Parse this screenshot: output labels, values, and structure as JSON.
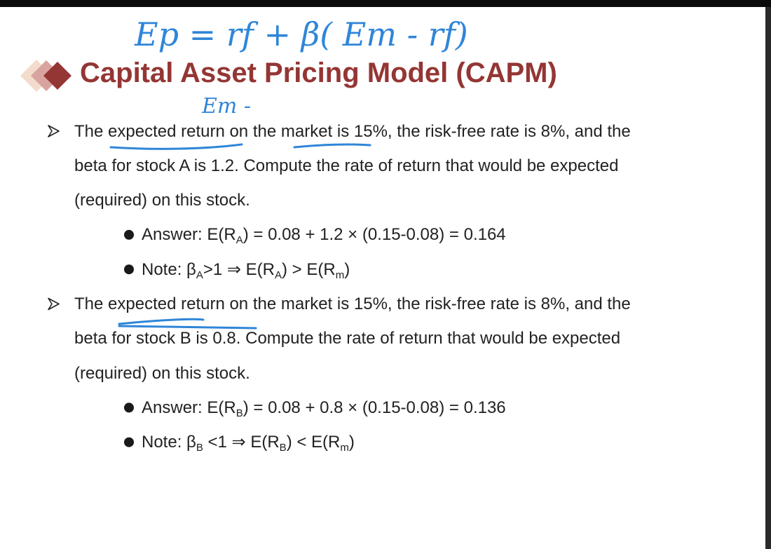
{
  "title": "Capital Asset Pricing Model (CAPM)",
  "annotations": [
    "Ep = rf + β( Em - rf)",
    "Em -"
  ],
  "questions": [
    {
      "lines": [
        "The expected return on the market is 15%, the risk-free rate is 8%, and the",
        "beta for stock A is 1.2. Compute the rate of return that would be expected",
        "(required) on this stock."
      ],
      "points": [
        [
          {
            "text": "Answer: E(R"
          },
          {
            "text": "A",
            "subscript": true
          },
          {
            "text": ") = 0.08 + 1.2 × (0.15-0.08) = 0.164"
          }
        ],
        [
          {
            "text": "Note: β"
          },
          {
            "text": "A",
            "subscript": true
          },
          {
            "text": ">1 ⇒ E(R"
          },
          {
            "text": "A",
            "subscript": true
          },
          {
            "text": ") > E(R"
          },
          {
            "text": "m",
            "subscript": true
          },
          {
            "text": ")"
          }
        ]
      ]
    },
    {
      "lines": [
        "The expected return on the market is 15%, the risk-free rate is 8%, and the",
        "beta for stock B is 0.8. Compute the rate of return that would be expected",
        "(required) on this stock."
      ],
      "points": [
        [
          {
            "text": "Answer: E(R"
          },
          {
            "text": "B",
            "subscript": true
          },
          {
            "text": ") = 0.08 + 0.8 × (0.15-0.08) = 0.136"
          }
        ],
        [
          {
            "text": "Note: β"
          },
          {
            "text": "B",
            "subscript": true
          },
          {
            "text": " <1 ⇒ E(R"
          },
          {
            "text": "B",
            "subscript": true
          },
          {
            "text": ") < E(R"
          },
          {
            "text": "m",
            "subscript": true
          },
          {
            "text": ")"
          }
        ]
      ]
    }
  ]
}
